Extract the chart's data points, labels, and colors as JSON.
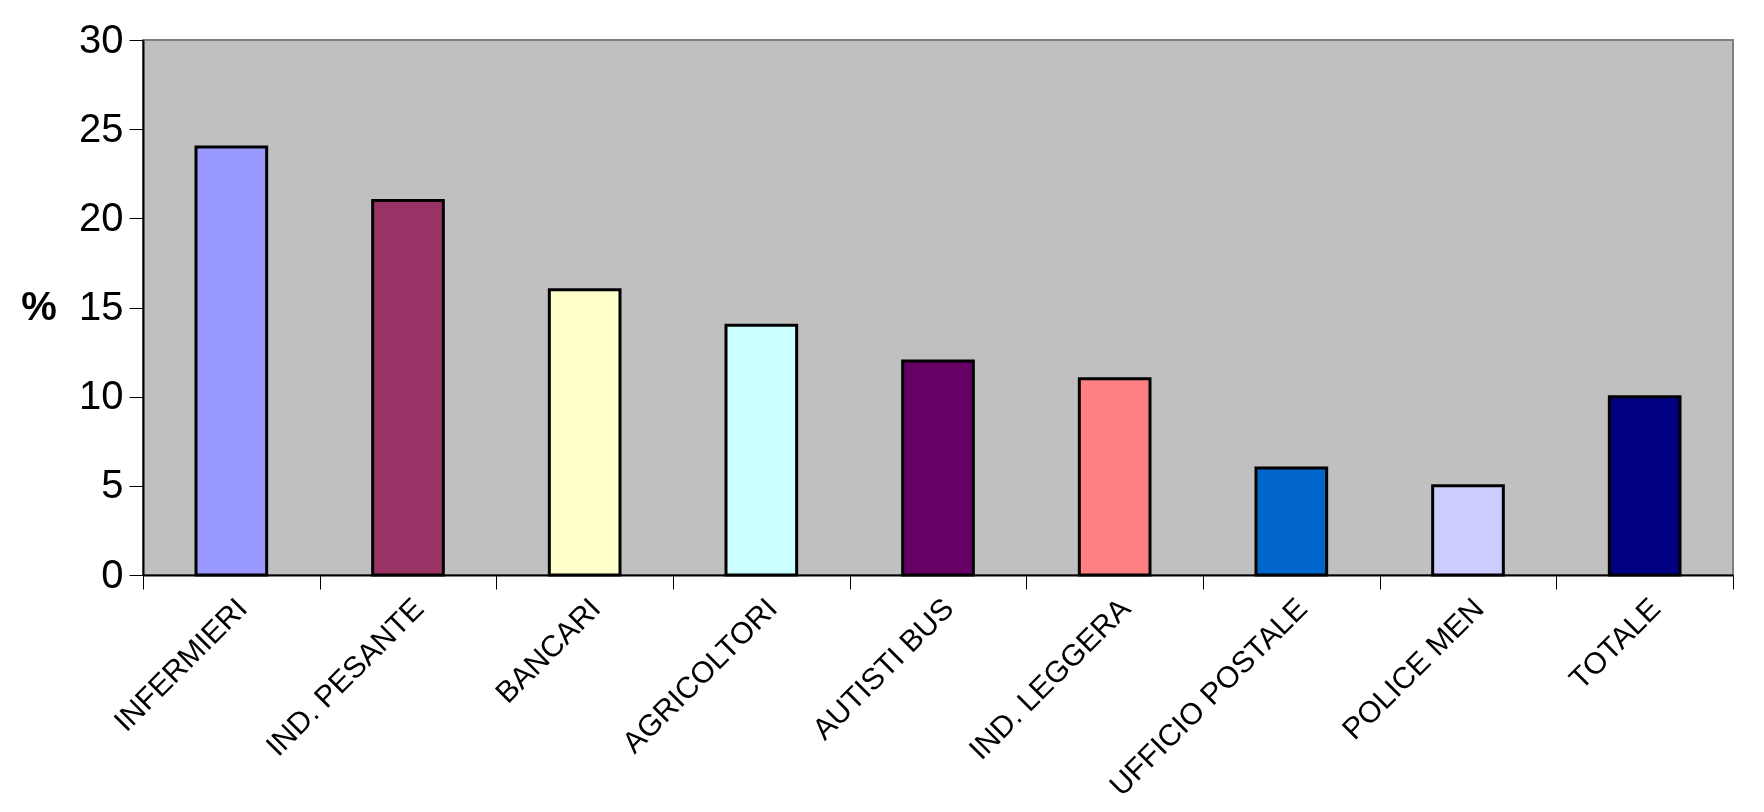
{
  "chart_data": {
    "type": "bar",
    "ylabel": "%",
    "categories": [
      "INFERMIERI",
      "IND. PESANTE",
      "BANCARI",
      "AGRICOLTORI",
      "AUTISTI BUS",
      "IND. LEGGERA",
      "UFFICIO POSTALE",
      "POLICE MEN",
      "TOTALE"
    ],
    "values": [
      24,
      21,
      16,
      14,
      12,
      11,
      6,
      5,
      10
    ],
    "colors": [
      "#9999ff",
      "#993366",
      "#ffffcc",
      "#ccffff",
      "#660066",
      "#ff8080",
      "#0066cc",
      "#ccccff",
      "#000080"
    ],
    "ylim": [
      0,
      30
    ],
    "yticks": [
      0,
      5,
      10,
      15,
      20,
      25,
      30
    ],
    "grid": false,
    "legend": false
  }
}
